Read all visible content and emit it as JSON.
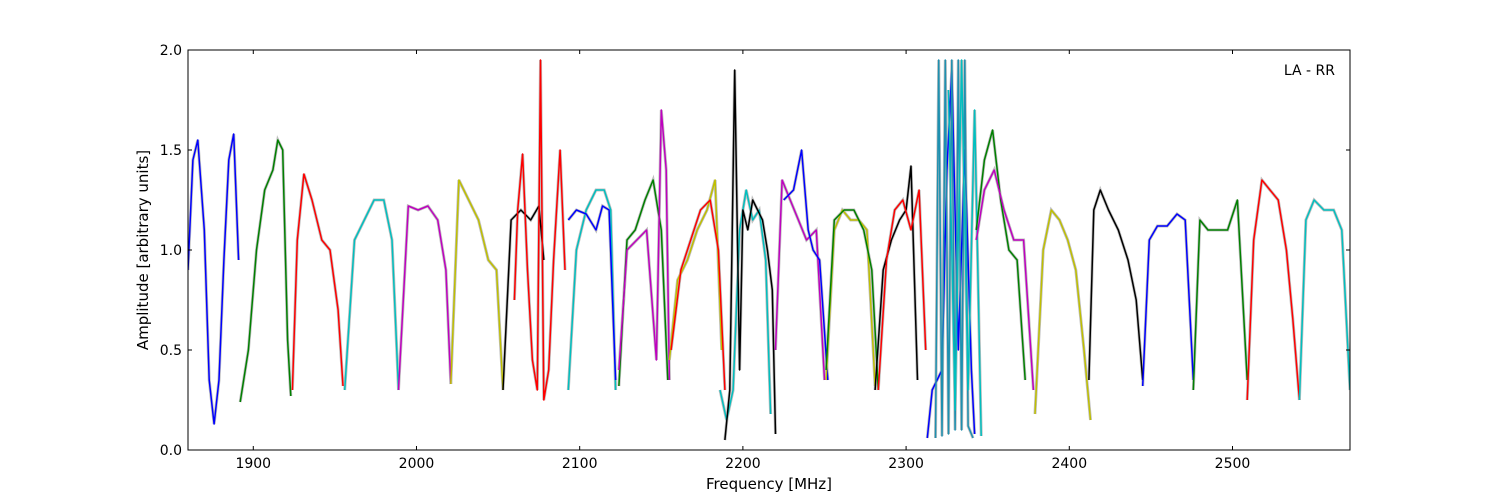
{
  "chart_data": {
    "type": "line",
    "title": "",
    "annotation": "LA - RR",
    "xlabel": "Frequency [MHz]",
    "ylabel": "Amplitude [arbitrary units]",
    "xlim": [
      1860,
      2572
    ],
    "ylim": [
      0.0,
      2.0
    ],
    "x_ticks": [
      1900,
      2000,
      2100,
      2200,
      2300,
      2400,
      2500
    ],
    "x_tick_labels": [
      "1900",
      "2000",
      "2100",
      "2200",
      "2300",
      "2400",
      "2500"
    ],
    "y_ticks": [
      0.0,
      0.5,
      1.0,
      1.5,
      2.0
    ],
    "y_tick_labels": [
      "0.0",
      "0.5",
      "1.0",
      "1.5",
      "2.0"
    ],
    "grid": false,
    "background_color": "#c0c0c0",
    "series": [
      {
        "color": "#0000ff",
        "x": [
          1860,
          1863,
          1866,
          1870,
          1873,
          1876,
          1879,
          1882,
          1885,
          1888,
          1891
        ],
        "y": [
          0.9,
          1.45,
          1.55,
          1.1,
          0.35,
          0.13,
          0.35,
          0.95,
          1.45,
          1.58,
          0.95
        ]
      },
      {
        "color": "#008000",
        "x": [
          1892,
          1897,
          1902,
          1907,
          1912,
          1915,
          1918,
          1921,
          1923
        ],
        "y": [
          0.24,
          0.5,
          1.0,
          1.3,
          1.4,
          1.55,
          1.5,
          0.55,
          0.27
        ]
      },
      {
        "color": "#ff0000",
        "x": [
          1924,
          1927,
          1931,
          1936,
          1942,
          1947,
          1952,
          1955
        ],
        "y": [
          0.3,
          1.05,
          1.38,
          1.25,
          1.05,
          1.0,
          0.7,
          0.32
        ]
      },
      {
        "color": "#00bfbf",
        "x": [
          1956,
          1962,
          1968,
          1974,
          1980,
          1985,
          1989
        ],
        "y": [
          0.3,
          1.05,
          1.15,
          1.25,
          1.25,
          1.05,
          0.3
        ]
      },
      {
        "color": "#bf00bf",
        "x": [
          1989,
          1995,
          2001,
          2007,
          2013,
          2018,
          2021
        ],
        "y": [
          0.3,
          1.22,
          1.2,
          1.22,
          1.15,
          0.9,
          0.33
        ]
      },
      {
        "color": "#bfbf00",
        "x": [
          2021,
          2026,
          2032,
          2038,
          2044,
          2049,
          2053
        ],
        "y": [
          0.33,
          1.35,
          1.25,
          1.15,
          0.95,
          0.9,
          0.3
        ]
      },
      {
        "color": "#000000",
        "x": [
          2053,
          2058,
          2064,
          2070,
          2075,
          2078
        ],
        "y": [
          0.3,
          1.15,
          1.2,
          1.15,
          1.22,
          0.95
        ]
      },
      {
        "color": "#ff0000",
        "x": [
          2060,
          2062,
          2065,
          2068,
          2071,
          2074,
          2076,
          2078,
          2081,
          2084,
          2088,
          2091
        ],
        "y": [
          0.75,
          1.2,
          1.48,
          0.9,
          0.45,
          0.3,
          1.95,
          0.25,
          0.4,
          0.95,
          1.5,
          0.9
        ]
      },
      {
        "color": "#00bfbf",
        "x": [
          2093,
          2098,
          2104,
          2110,
          2115,
          2119,
          2122
        ],
        "y": [
          0.3,
          1.0,
          1.2,
          1.3,
          1.3,
          1.2,
          0.3
        ]
      },
      {
        "color": "#0000ff",
        "x": [
          2093,
          2098,
          2104,
          2110,
          2114,
          2118,
          2122
        ],
        "y": [
          1.15,
          1.2,
          1.18,
          1.1,
          1.22,
          1.2,
          0.35
        ]
      },
      {
        "color": "#008000",
        "x": [
          2124,
          2129,
          2134,
          2140,
          2145,
          2150,
          2154
        ],
        "y": [
          0.32,
          1.05,
          1.1,
          1.25,
          1.35,
          1.1,
          0.35
        ]
      },
      {
        "color": "#bf00bf",
        "x": [
          2124,
          2129,
          2135,
          2141,
          2147,
          2150,
          2153,
          2155
        ],
        "y": [
          0.4,
          1.0,
          1.05,
          1.1,
          0.45,
          1.7,
          1.4,
          0.35
        ]
      },
      {
        "color": "#bfbf00",
        "x": [
          2155,
          2160,
          2166,
          2172,
          2178,
          2183,
          2187
        ],
        "y": [
          0.45,
          0.85,
          0.95,
          1.1,
          1.2,
          1.35,
          0.5
        ]
      },
      {
        "color": "#ff0000",
        "x": [
          2156,
          2162,
          2168,
          2174,
          2180,
          2185,
          2189
        ],
        "y": [
          0.5,
          0.9,
          1.05,
          1.2,
          1.25,
          1.0,
          0.3
        ]
      },
      {
        "color": "#00bfbf",
        "x": [
          2186,
          2190,
          2194,
          2198,
          2202,
          2206,
          2210,
          2214,
          2217
        ],
        "y": [
          0.3,
          0.15,
          0.3,
          1.1,
          1.3,
          1.15,
          1.2,
          0.95,
          0.18
        ]
      },
      {
        "color": "#000000",
        "x": [
          2189,
          2192,
          2195,
          2198,
          2200,
          2203,
          2206,
          2209,
          2212,
          2215,
          2218,
          2220
        ],
        "y": [
          0.05,
          0.3,
          1.9,
          0.4,
          1.2,
          1.1,
          1.25,
          1.2,
          1.15,
          1.0,
          0.8,
          0.08
        ]
      },
      {
        "color": "#bf00bf",
        "x": [
          2220,
          2224,
          2229,
          2234,
          2239,
          2245,
          2250
        ],
        "y": [
          0.5,
          1.35,
          1.25,
          1.15,
          1.05,
          1.1,
          0.35
        ]
      },
      {
        "color": "#0000ff",
        "x": [
          2225,
          2231,
          2236,
          2240,
          2243,
          2247,
          2252
        ],
        "y": [
          1.25,
          1.3,
          1.5,
          1.1,
          1.0,
          0.95,
          0.35
        ]
      },
      {
        "color": "#bfbf00",
        "x": [
          2251,
          2256,
          2261,
          2266,
          2271,
          2276,
          2281
        ],
        "y": [
          0.35,
          1.1,
          1.2,
          1.15,
          1.15,
          1.1,
          0.32
        ]
      },
      {
        "color": "#008000",
        "x": [
          2251,
          2256,
          2262,
          2268,
          2274,
          2279,
          2283
        ],
        "y": [
          0.4,
          1.15,
          1.2,
          1.2,
          1.1,
          0.9,
          0.3
        ]
      },
      {
        "color": "#000000",
        "x": [
          2281,
          2286,
          2291,
          2296,
          2300,
          2303,
          2307
        ],
        "y": [
          0.3,
          0.9,
          1.05,
          1.15,
          1.2,
          1.42,
          0.35
        ]
      },
      {
        "color": "#ff0000",
        "x": [
          2283,
          2288,
          2293,
          2298,
          2303,
          2308,
          2312
        ],
        "y": [
          0.3,
          0.95,
          1.2,
          1.25,
          1.1,
          1.3,
          0.5
        ]
      },
      {
        "color": "#0000ff",
        "x": [
          2313,
          2316,
          2319,
          2322,
          2325,
          2328,
          2332,
          2336,
          2340,
          2342
        ],
        "y": [
          0.06,
          0.3,
          0.35,
          0.4,
          1.4,
          1.9,
          0.5,
          1.5,
          0.4,
          0.08
        ]
      },
      {
        "color": "#1e90b0",
        "x": [
          2318,
          2320,
          2322,
          2324,
          2326,
          2328,
          2330,
          2332,
          2334,
          2336,
          2338,
          2341
        ],
        "y": [
          0.06,
          1.95,
          0.07,
          1.95,
          0.08,
          1.95,
          0.1,
          1.95,
          0.1,
          1.95,
          0.12,
          0.06
        ]
      },
      {
        "color": "#00bfbf",
        "x": [
          2326,
          2330,
          2334,
          2338,
          2342,
          2346
        ],
        "y": [
          1.8,
          0.2,
          1.95,
          0.3,
          1.7,
          0.07
        ]
      },
      {
        "color": "#008000",
        "x": [
          2343,
          2348,
          2353,
          2358,
          2363,
          2368,
          2373
        ],
        "y": [
          1.1,
          1.45,
          1.6,
          1.25,
          1.0,
          0.95,
          0.35
        ]
      },
      {
        "color": "#bf00bf",
        "x": [
          2343,
          2348,
          2354,
          2360,
          2366,
          2372,
          2378
        ],
        "y": [
          1.05,
          1.3,
          1.4,
          1.2,
          1.05,
          1.05,
          0.3
        ]
      },
      {
        "color": "#bfbf00",
        "x": [
          2379,
          2384,
          2389,
          2394,
          2399,
          2404,
          2409,
          2413
        ],
        "y": [
          0.18,
          1.0,
          1.2,
          1.15,
          1.05,
          0.9,
          0.5,
          0.15
        ]
      },
      {
        "color": "#000000",
        "x": [
          2412,
          2415,
          2419,
          2424,
          2430,
          2436,
          2441,
          2445
        ],
        "y": [
          0.35,
          1.2,
          1.3,
          1.2,
          1.1,
          0.95,
          0.75,
          0.35
        ]
      },
      {
        "color": "#0000ff",
        "x": [
          2445,
          2449,
          2454,
          2460,
          2466,
          2471,
          2476
        ],
        "y": [
          0.32,
          1.05,
          1.12,
          1.12,
          1.18,
          1.15,
          0.35
        ]
      },
      {
        "color": "#008000",
        "x": [
          2476,
          2480,
          2485,
          2491,
          2497,
          2503,
          2509
        ],
        "y": [
          0.3,
          1.15,
          1.1,
          1.1,
          1.1,
          1.25,
          0.35
        ]
      },
      {
        "color": "#ff0000",
        "x": [
          2509,
          2513,
          2518,
          2523,
          2528,
          2533,
          2537,
          2541
        ],
        "y": [
          0.25,
          1.05,
          1.35,
          1.3,
          1.25,
          1.0,
          0.65,
          0.25
        ]
      },
      {
        "color": "#00bfbf",
        "x": [
          2541,
          2545,
          2550,
          2556,
          2562,
          2567,
          2572
        ],
        "y": [
          0.25,
          1.15,
          1.25,
          1.2,
          1.2,
          1.1,
          0.3
        ]
      }
    ]
  }
}
